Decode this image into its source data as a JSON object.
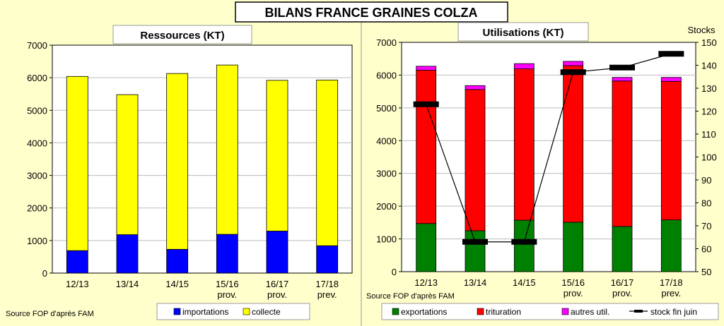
{
  "page": {
    "title": "BILANS FRANCE GRAINES COLZA",
    "source_left": "Source FOP d'après FAM",
    "source_right": "Source FOP d'après FAM"
  },
  "chart_data": [
    {
      "type": "bar",
      "stacked": true,
      "title": "Ressources (KT)",
      "categories": [
        "12/13",
        "13/14",
        "14/15",
        "15/16\nprov.",
        "16/17\nprov.",
        "17/18\nprev."
      ],
      "ylim": [
        0,
        7000
      ],
      "yticks": [
        0,
        1000,
        2000,
        3000,
        4000,
        5000,
        6000,
        7000
      ],
      "series": [
        {
          "name": "importations",
          "color": "#0000ff",
          "values": [
            690,
            1180,
            730,
            1190,
            1290,
            840
          ]
        },
        {
          "name": "collecte",
          "color": "#ffff00",
          "values": [
            5350,
            4300,
            5400,
            5200,
            4630,
            5090
          ]
        }
      ],
      "legend": "bottom"
    },
    {
      "type": "bar",
      "stacked": true,
      "title": "Utilisations (KT)",
      "categories": [
        "12/13",
        "13/14",
        "14/15",
        "15/16\nprov.",
        "16/17\nprov.",
        "17/18\nprev."
      ],
      "ylim": [
        0,
        7000
      ],
      "yticks": [
        0,
        1000,
        2000,
        3000,
        4000,
        5000,
        6000,
        7000
      ],
      "y2label": "Stocks",
      "y2lim": [
        50,
        150
      ],
      "y2ticks": [
        50,
        60,
        70,
        80,
        90,
        100,
        110,
        120,
        130,
        140,
        150
      ],
      "series": [
        {
          "name": "exportations",
          "color": "#008000",
          "values": [
            1470,
            1250,
            1570,
            1510,
            1380,
            1580
          ]
        },
        {
          "name": "trituration",
          "color": "#ff0000",
          "values": [
            4680,
            4310,
            4620,
            4780,
            4440,
            4230
          ]
        },
        {
          "name": "autres util.",
          "color": "#ff00ff",
          "values": [
            120,
            120,
            160,
            130,
            110,
            120
          ]
        }
      ],
      "line_series": {
        "name": "stock fin juin",
        "color": "#000000",
        "axis": "right",
        "values": [
          123,
          63,
          63,
          137,
          139,
          145
        ]
      },
      "legend": "bottom"
    }
  ]
}
